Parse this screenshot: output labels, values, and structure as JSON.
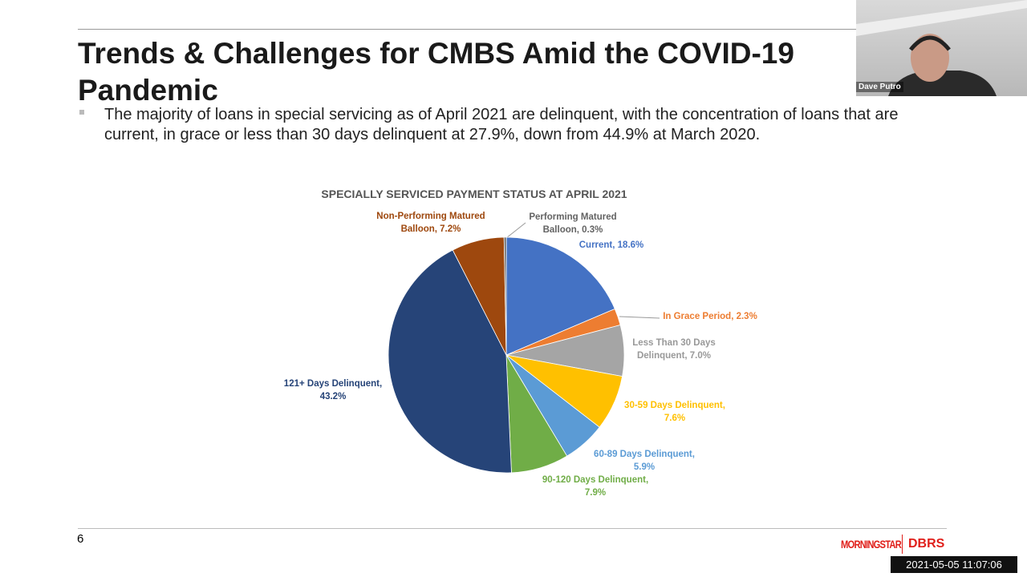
{
  "slide": {
    "title": "Trends & Challenges for CMBS Amid the COVID-19 Pandemic",
    "bullet": "The majority of loans in special servicing as of April 2021 are delinquent, with the concentration of loans that are current, in grace or less than 30 days delinquent at 27.9%, down from 44.9% at March 2020.",
    "page_number": "6",
    "logo": [
      "MORNINGSTAR",
      "DBRS"
    ]
  },
  "video": {
    "speaker": "Dave Putro",
    "timestamp": "2021-05-05 11:07:06"
  },
  "chart_data": {
    "type": "pie",
    "title": "SPECIALLY SERVICED PAYMENT STATUS AT APRIL 2021",
    "categories": [
      "Current, 18.6%",
      "In Grace Period, 2.3%",
      "Less Than 30 Days Delinquent, 7.0%",
      "30-59 Days Delinquent, 7.6%",
      "60-89 Days Delinquent, 5.9%",
      "90-120 Days Delinquent, 7.9%",
      "121+ Days Delinquent, 43.2%",
      "Non-Performing Matured Balloon, 7.2%",
      "Performing Matured Balloon, 0.3%"
    ],
    "values": [
      18.6,
      2.3,
      7.0,
      7.6,
      5.9,
      7.9,
      43.2,
      7.2,
      0.3
    ],
    "colors": [
      "#4472c4",
      "#ed7d31",
      "#a5a5a5",
      "#ffc000",
      "#5b9bd5",
      "#70ad47",
      "#264478",
      "#9e480e",
      "#636363"
    ]
  }
}
